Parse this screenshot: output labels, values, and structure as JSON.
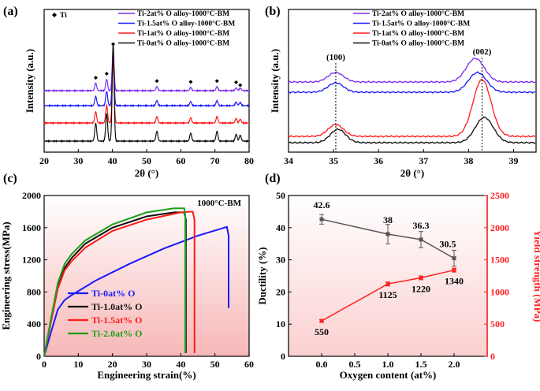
{
  "chart_data": [
    {
      "panel": "(a)",
      "type": "line",
      "xlabel": "2θ (°)",
      "ylabel": "Intensity (a.u.)",
      "xlim": [
        20,
        80
      ],
      "xticks": [
        "20",
        "30",
        "40",
        "50",
        "60",
        "70",
        "80"
      ],
      "marker_legend": "Ti",
      "series": [
        {
          "name": "Ti-2at% O alloy-1000°C-BM",
          "color": "#7b2cf5"
        },
        {
          "name": "Ti-1.5at% O alloy-1000°C-BM",
          "color": "#1a1aff"
        },
        {
          "name": "Ti-1at% O alloy-1000°C-BM",
          "color": "#ff1a1a"
        },
        {
          "name": "Ti-0at% O alloy-1000°C-BM",
          "color": "#111111"
        }
      ],
      "peaks_2theta": [
        35.1,
        38.3,
        40.2,
        53.0,
        62.9,
        70.6,
        76.2,
        77.4
      ],
      "peak_rel_heights": [
        0.18,
        0.28,
        1.0,
        0.1,
        0.08,
        0.1,
        0.07,
        0.06
      ]
    },
    {
      "panel": "(b)",
      "type": "line",
      "xlabel": "2θ (°)",
      "ylabel": "Intensity (a.u.)",
      "xlim": [
        34,
        39.5
      ],
      "xticks": [
        "34",
        "35",
        "36",
        "37",
        "38",
        "39"
      ],
      "annotations": [
        "(100)",
        "(002)"
      ],
      "annotation_x": [
        35.05,
        38.3
      ],
      "series": [
        {
          "name": "Ti-2at% O alloy-1000°C-BM",
          "color": "#7b2cf5",
          "peak100": 35.05,
          "peak002": 38.15
        },
        {
          "name": "Ti-1.5at% O alloy-1000°C-BM",
          "color": "#1a1aff",
          "peak100": 35.05,
          "peak002": 38.2
        },
        {
          "name": "Ti-1at% O alloy-1000°C-BM",
          "color": "#ff1a1a",
          "peak100": 35.05,
          "peak002": 38.3
        },
        {
          "name": "Ti-0at% O alloy-1000°C-BM",
          "color": "#111111",
          "peak100": 35.1,
          "peak002": 38.35
        }
      ]
    },
    {
      "panel": "(c)",
      "type": "line",
      "title": "1000°C-BM",
      "xlabel": "Engineering strain(%)",
      "ylabel": "Engineering stress(MPa)",
      "xlim": [
        0,
        60
      ],
      "ylim": [
        0,
        2000
      ],
      "xticks": [
        "0",
        "10",
        "20",
        "30",
        "40",
        "50",
        "60"
      ],
      "yticks": [
        "0",
        "400",
        "800",
        "1200",
        "1600",
        "2000"
      ],
      "series": [
        {
          "name": "Ti-0at% O",
          "color": "#1a1aff",
          "x": [
            0,
            2,
            4,
            6,
            8,
            15,
            25,
            35,
            45,
            52,
            53.5,
            54,
            54
          ],
          "y": [
            0,
            300,
            580,
            700,
            760,
            940,
            1150,
            1340,
            1500,
            1590,
            1610,
            1500,
            600
          ]
        },
        {
          "name": "Ti-1.0at% O",
          "color": "#111111",
          "x": [
            0,
            2,
            4,
            6,
            8,
            12,
            20,
            30,
            38,
            41,
            41.5,
            41.5
          ],
          "y": [
            0,
            450,
            870,
            1100,
            1220,
            1400,
            1600,
            1740,
            1790,
            1790,
            1700,
            40
          ]
        },
        {
          "name": "Ti-1.5at% O",
          "color": "#ff1a1a",
          "x": [
            0,
            2,
            4,
            6,
            8,
            12,
            20,
            30,
            40,
            43.5,
            44,
            44
          ],
          "y": [
            0,
            430,
            840,
            1070,
            1180,
            1350,
            1560,
            1700,
            1790,
            1800,
            1700,
            40
          ]
        },
        {
          "name": "Ti-2.0at% O",
          "color": "#1aa01a",
          "x": [
            0,
            2,
            4,
            6,
            8,
            12,
            20,
            30,
            38,
            41,
            41.3,
            41.3
          ],
          "y": [
            0,
            470,
            910,
            1150,
            1270,
            1440,
            1640,
            1790,
            1840,
            1840,
            1750,
            40
          ]
        }
      ]
    },
    {
      "panel": "(d)",
      "type": "line",
      "xlabel": "Oxygen content (at%)",
      "ylabel": "Ductility (%)",
      "ylabel2": "Yield strength (MPa)",
      "xlim": [
        -0.5,
        2.5
      ],
      "ylim": [
        0,
        50
      ],
      "ylim2": [
        0,
        2500
      ],
      "xticks": [
        "0.0",
        "0.5",
        "1.0",
        "1.5",
        "2.0"
      ],
      "yticks": [
        "0",
        "10",
        "20",
        "30",
        "40",
        "50"
      ],
      "yticks2": [
        "0",
        "500",
        "1000",
        "1500",
        "2000",
        "2500"
      ],
      "series": [
        {
          "name": "Ductility",
          "color": "#555555",
          "axis": "left",
          "x": [
            0,
            1,
            1.5,
            2
          ],
          "values": [
            42.6,
            38,
            36.3,
            30.5
          ],
          "errors": [
            1.5,
            3.0,
            2.5,
            2.5
          ],
          "labels": [
            "42.6",
            "38",
            "36.3",
            "30.5"
          ]
        },
        {
          "name": "Yield strength",
          "color": "#ff2020",
          "axis": "right",
          "x": [
            0,
            1,
            1.5,
            2
          ],
          "values": [
            550,
            1125,
            1220,
            1340
          ],
          "errors": [
            20,
            30,
            30,
            30
          ],
          "labels": [
            "550",
            "1125",
            "1220",
            "1340"
          ]
        }
      ]
    }
  ]
}
